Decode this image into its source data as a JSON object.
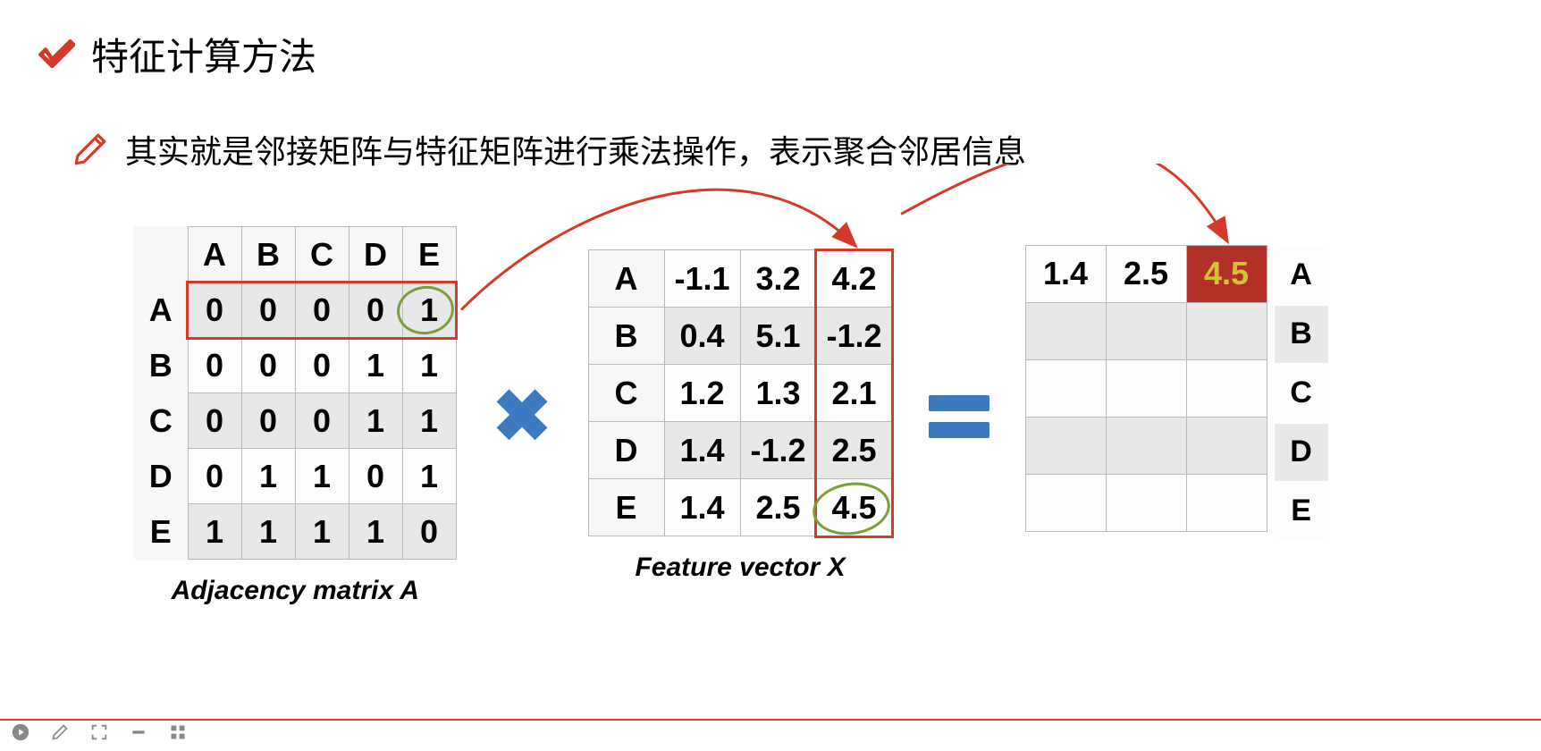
{
  "title": "特征计算方法",
  "subtitle": "其实就是邻接矩阵与特征矩阵进行乘法操作，表示聚合邻居信息",
  "adj_matrix": {
    "col_headers": [
      "A",
      "B",
      "C",
      "D",
      "E"
    ],
    "row_headers": [
      "A",
      "B",
      "C",
      "D",
      "E"
    ],
    "rows": [
      [
        "0",
        "0",
        "0",
        "0",
        "1"
      ],
      [
        "0",
        "0",
        "0",
        "1",
        "1"
      ],
      [
        "0",
        "0",
        "0",
        "1",
        "1"
      ],
      [
        "0",
        "1",
        "1",
        "0",
        "1"
      ],
      [
        "1",
        "1",
        "1",
        "1",
        "0"
      ]
    ],
    "highlight_row_index": 0,
    "caption_prefix": "Adjacency matrix ",
    "caption_var": "A"
  },
  "feat_matrix": {
    "row_headers": [
      "A",
      "B",
      "C",
      "D",
      "E"
    ],
    "rows": [
      [
        "-1.1",
        "3.2",
        "4.2"
      ],
      [
        "0.4",
        "5.1",
        "-1.2"
      ],
      [
        "1.2",
        "1.3",
        "2.1"
      ],
      [
        "1.4",
        "-1.2",
        "2.5"
      ],
      [
        "1.4",
        "2.5",
        "4.5"
      ]
    ],
    "highlight_col_index": 2,
    "caption_prefix": "Feature vector ",
    "caption_var": "X"
  },
  "result_matrix": {
    "row_headers": [
      "A",
      "B",
      "C",
      "D",
      "E"
    ],
    "rows": [
      [
        "1.4",
        "2.5",
        "4.5"
      ],
      [
        "",
        "",
        ""
      ],
      [
        "",
        "",
        ""
      ],
      [
        "",
        "",
        ""
      ],
      [
        "",
        "",
        ""
      ]
    ],
    "highlight_cell": {
      "row": 0,
      "col": 2
    }
  },
  "colors": {
    "operator": "#3d79be",
    "highlight_border": "#d43a2a",
    "highlight_fill": "#b23028",
    "highlight_text": "#d4c430",
    "circle": "#7a9e3a",
    "arrow": "#d43a2a"
  }
}
